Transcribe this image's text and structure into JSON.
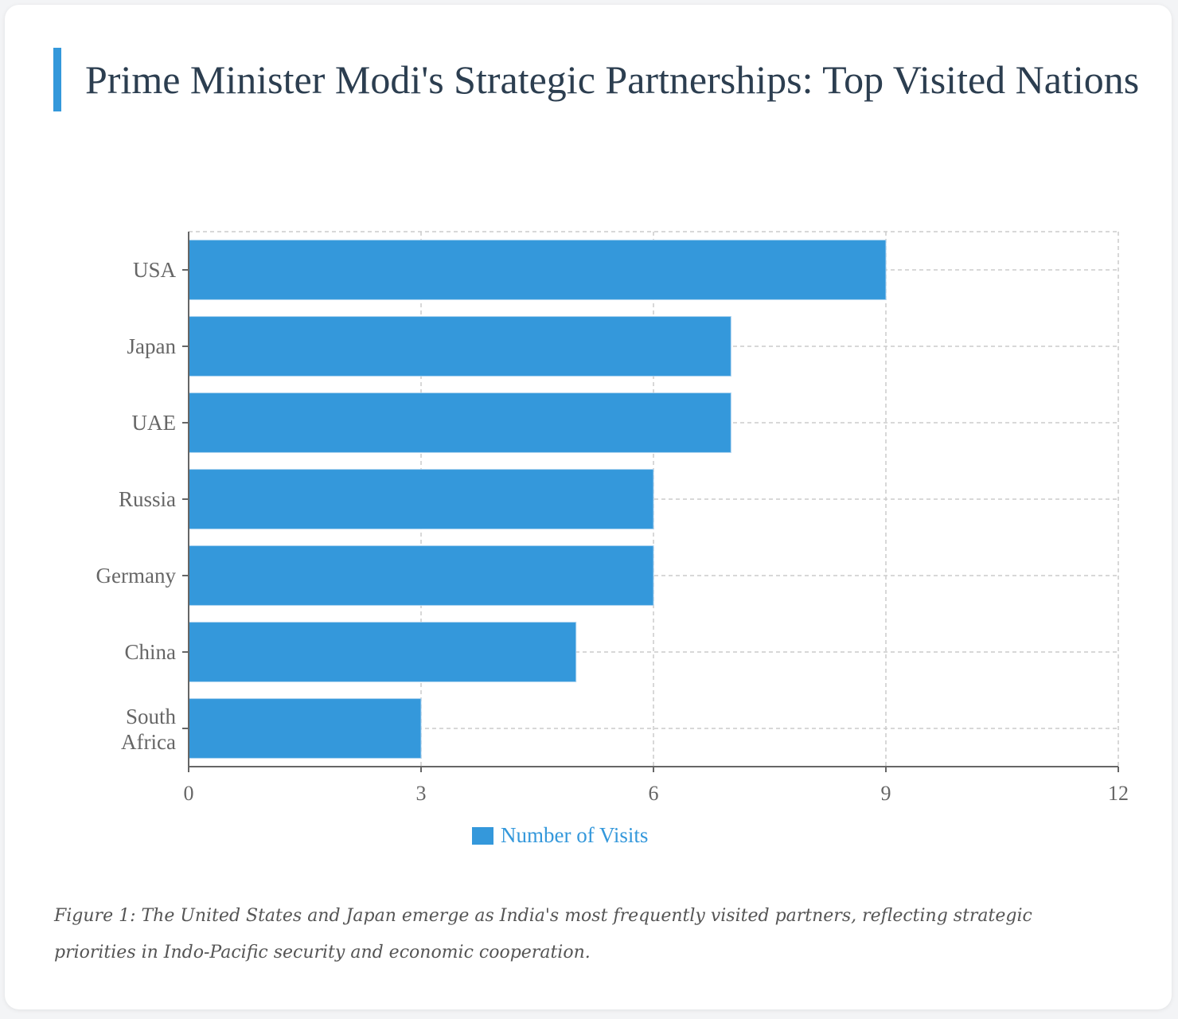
{
  "title": "Prime Minister Modi's Strategic Partnerships: Top Visited Nations",
  "caption": "Figure 1: The United States and Japan emerge as India's most frequently visited partners, reflecting strategic priorities in Indo-Pacific security and economic cooperation.",
  "colors": {
    "bar": "#3498db",
    "title": "#2c3e50",
    "axis": "#666666",
    "grid": "#cccccc"
  },
  "chart_data": {
    "type": "bar",
    "orientation": "horizontal",
    "categories": [
      "USA",
      "Japan",
      "UAE",
      "Russia",
      "Germany",
      "China",
      "South Africa"
    ],
    "series": [
      {
        "name": "Number of Visits",
        "values": [
          9,
          7,
          7,
          6,
          6,
          5,
          3
        ]
      }
    ],
    "xlim": [
      0,
      12
    ],
    "xticks": [
      0,
      3,
      6,
      9,
      12
    ],
    "xlabel": "",
    "ylabel": "",
    "grid": true,
    "legend": "bottom-center"
  }
}
